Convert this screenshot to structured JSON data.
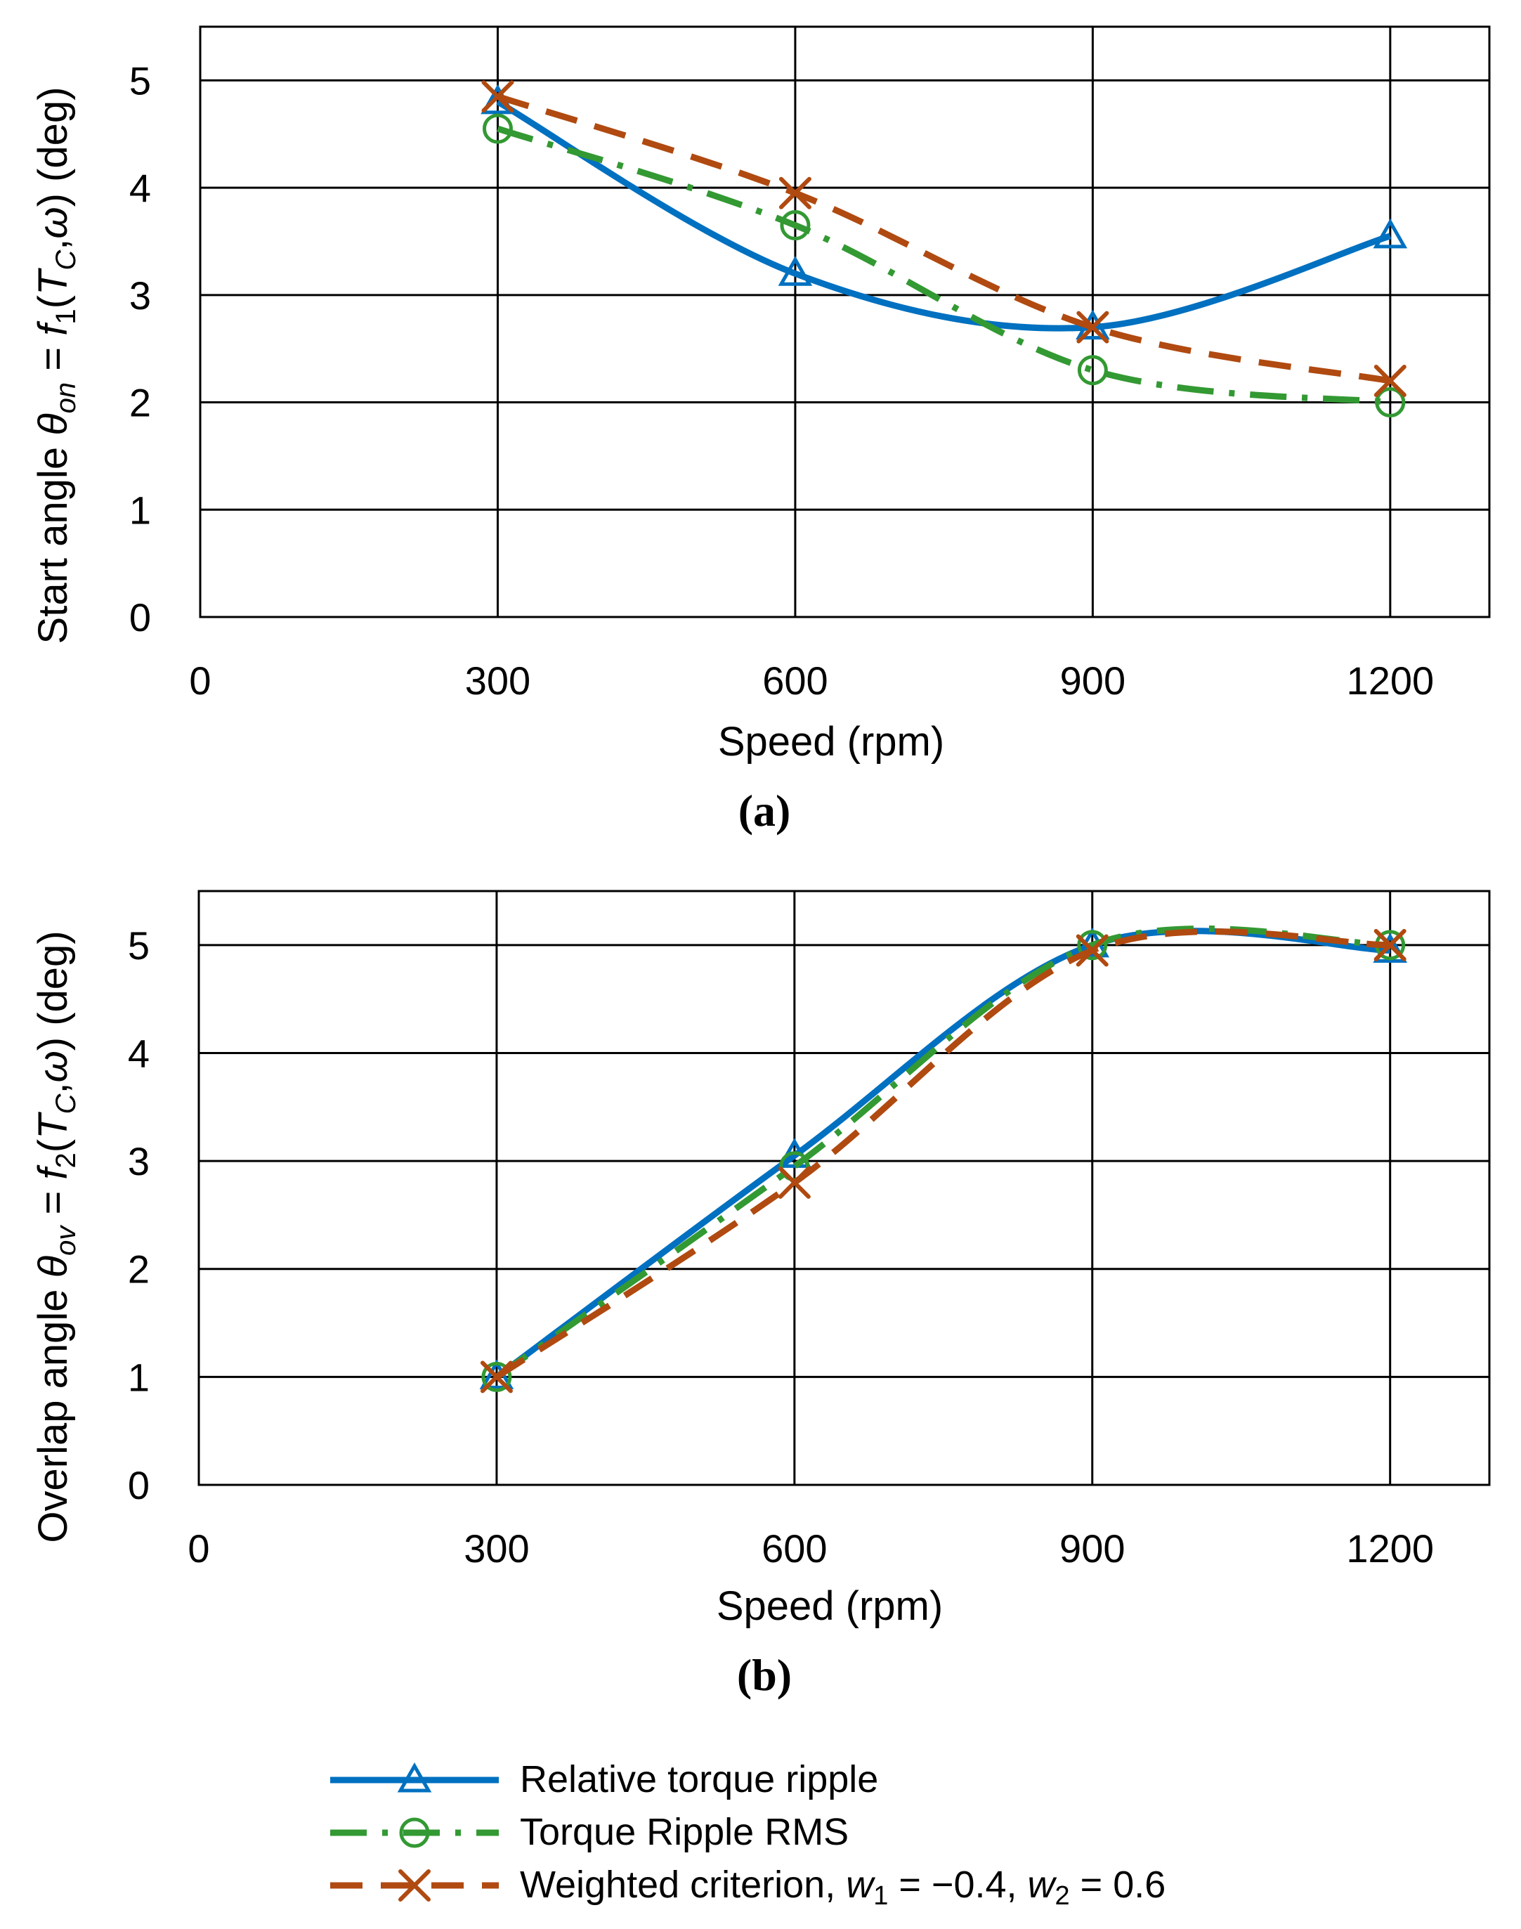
{
  "chart_data": [
    {
      "type": "line",
      "panel_label": "(a)",
      "xlabel": "Speed (rpm)",
      "ylabel": {
        "prefix": "Start angle ",
        "symbol": "θ",
        "symbol_sub": "on",
        "mid": " = ",
        "func": "f",
        "func_sub": "1",
        "args_open": "(",
        "arg1": "T",
        "arg1_sub": "C",
        "args_sep": ",",
        "arg2": "ω",
        "args_close": ")",
        "unit": " (deg)"
      },
      "xlim": [
        0,
        1300
      ],
      "ylim": [
        0,
        5.5
      ],
      "x_ticks": [
        0,
        300,
        600,
        900,
        1200
      ],
      "y_ticks": [
        0,
        1,
        2,
        3,
        4,
        5
      ],
      "x_gridlines": [
        300,
        600,
        900,
        1200
      ],
      "y_gridlines": [
        1,
        2,
        3,
        4,
        5
      ],
      "x": [
        300,
        600,
        900,
        1200
      ],
      "series": [
        {
          "name": "Relative torque ripple",
          "values": [
            4.8,
            3.2,
            2.7,
            3.55
          ]
        },
        {
          "name": "Torque Ripple RMS",
          "values": [
            4.55,
            3.65,
            2.3,
            2.0
          ]
        },
        {
          "name": "Weighted criterion",
          "values": [
            4.85,
            3.95,
            2.7,
            2.2
          ]
        }
      ]
    },
    {
      "type": "line",
      "panel_label": "(b)",
      "xlabel": "Speed (rpm)",
      "ylabel": {
        "prefix": "Overlap angle ",
        "symbol": "θ",
        "symbol_sub": "ov",
        "mid": "  = ",
        "func": "f",
        "func_sub": "2",
        "args_open": "(",
        "arg1": "T",
        "arg1_sub": "C",
        "args_sep": ",",
        "arg2": "ω",
        "args_close": ")",
        "unit": " (deg)"
      },
      "xlim": [
        0,
        1300
      ],
      "ylim": [
        0,
        5.5
      ],
      "x_ticks": [
        0,
        300,
        600,
        900,
        1200
      ],
      "y_ticks": [
        0,
        1,
        2,
        3,
        4,
        5
      ],
      "x_gridlines": [
        300,
        600,
        900,
        1200
      ],
      "y_gridlines": [
        1,
        2,
        3,
        4,
        5
      ],
      "x": [
        300,
        600,
        900,
        1200
      ],
      "series": [
        {
          "name": "Relative torque ripple",
          "values": [
            1.0,
            3.05,
            5.0,
            4.95
          ]
        },
        {
          "name": "Torque Ripple RMS",
          "values": [
            1.0,
            2.95,
            5.0,
            5.0
          ]
        },
        {
          "name": "Weighted criterion",
          "values": [
            1.0,
            2.8,
            4.95,
            5.0
          ]
        }
      ]
    }
  ],
  "series_styles": [
    {
      "color": "#0070C0",
      "marker": "triangle",
      "dash": "solid"
    },
    {
      "color": "#339933",
      "marker": "circle",
      "dash": "dashdot"
    },
    {
      "color": "#B04A10",
      "marker": "x",
      "dash": "dash"
    }
  ],
  "legend": {
    "items": [
      {
        "text": "Relative torque ripple"
      },
      {
        "text": "Torque Ripple RMS"
      },
      {
        "text_prefix": "Weighted criterion, ",
        "w1": "w",
        "w1_sub": "1",
        "w1_val": " = −0.4, ",
        "w2": "w",
        "w2_sub": "2",
        "w2_val": " = 0.6"
      }
    ]
  }
}
